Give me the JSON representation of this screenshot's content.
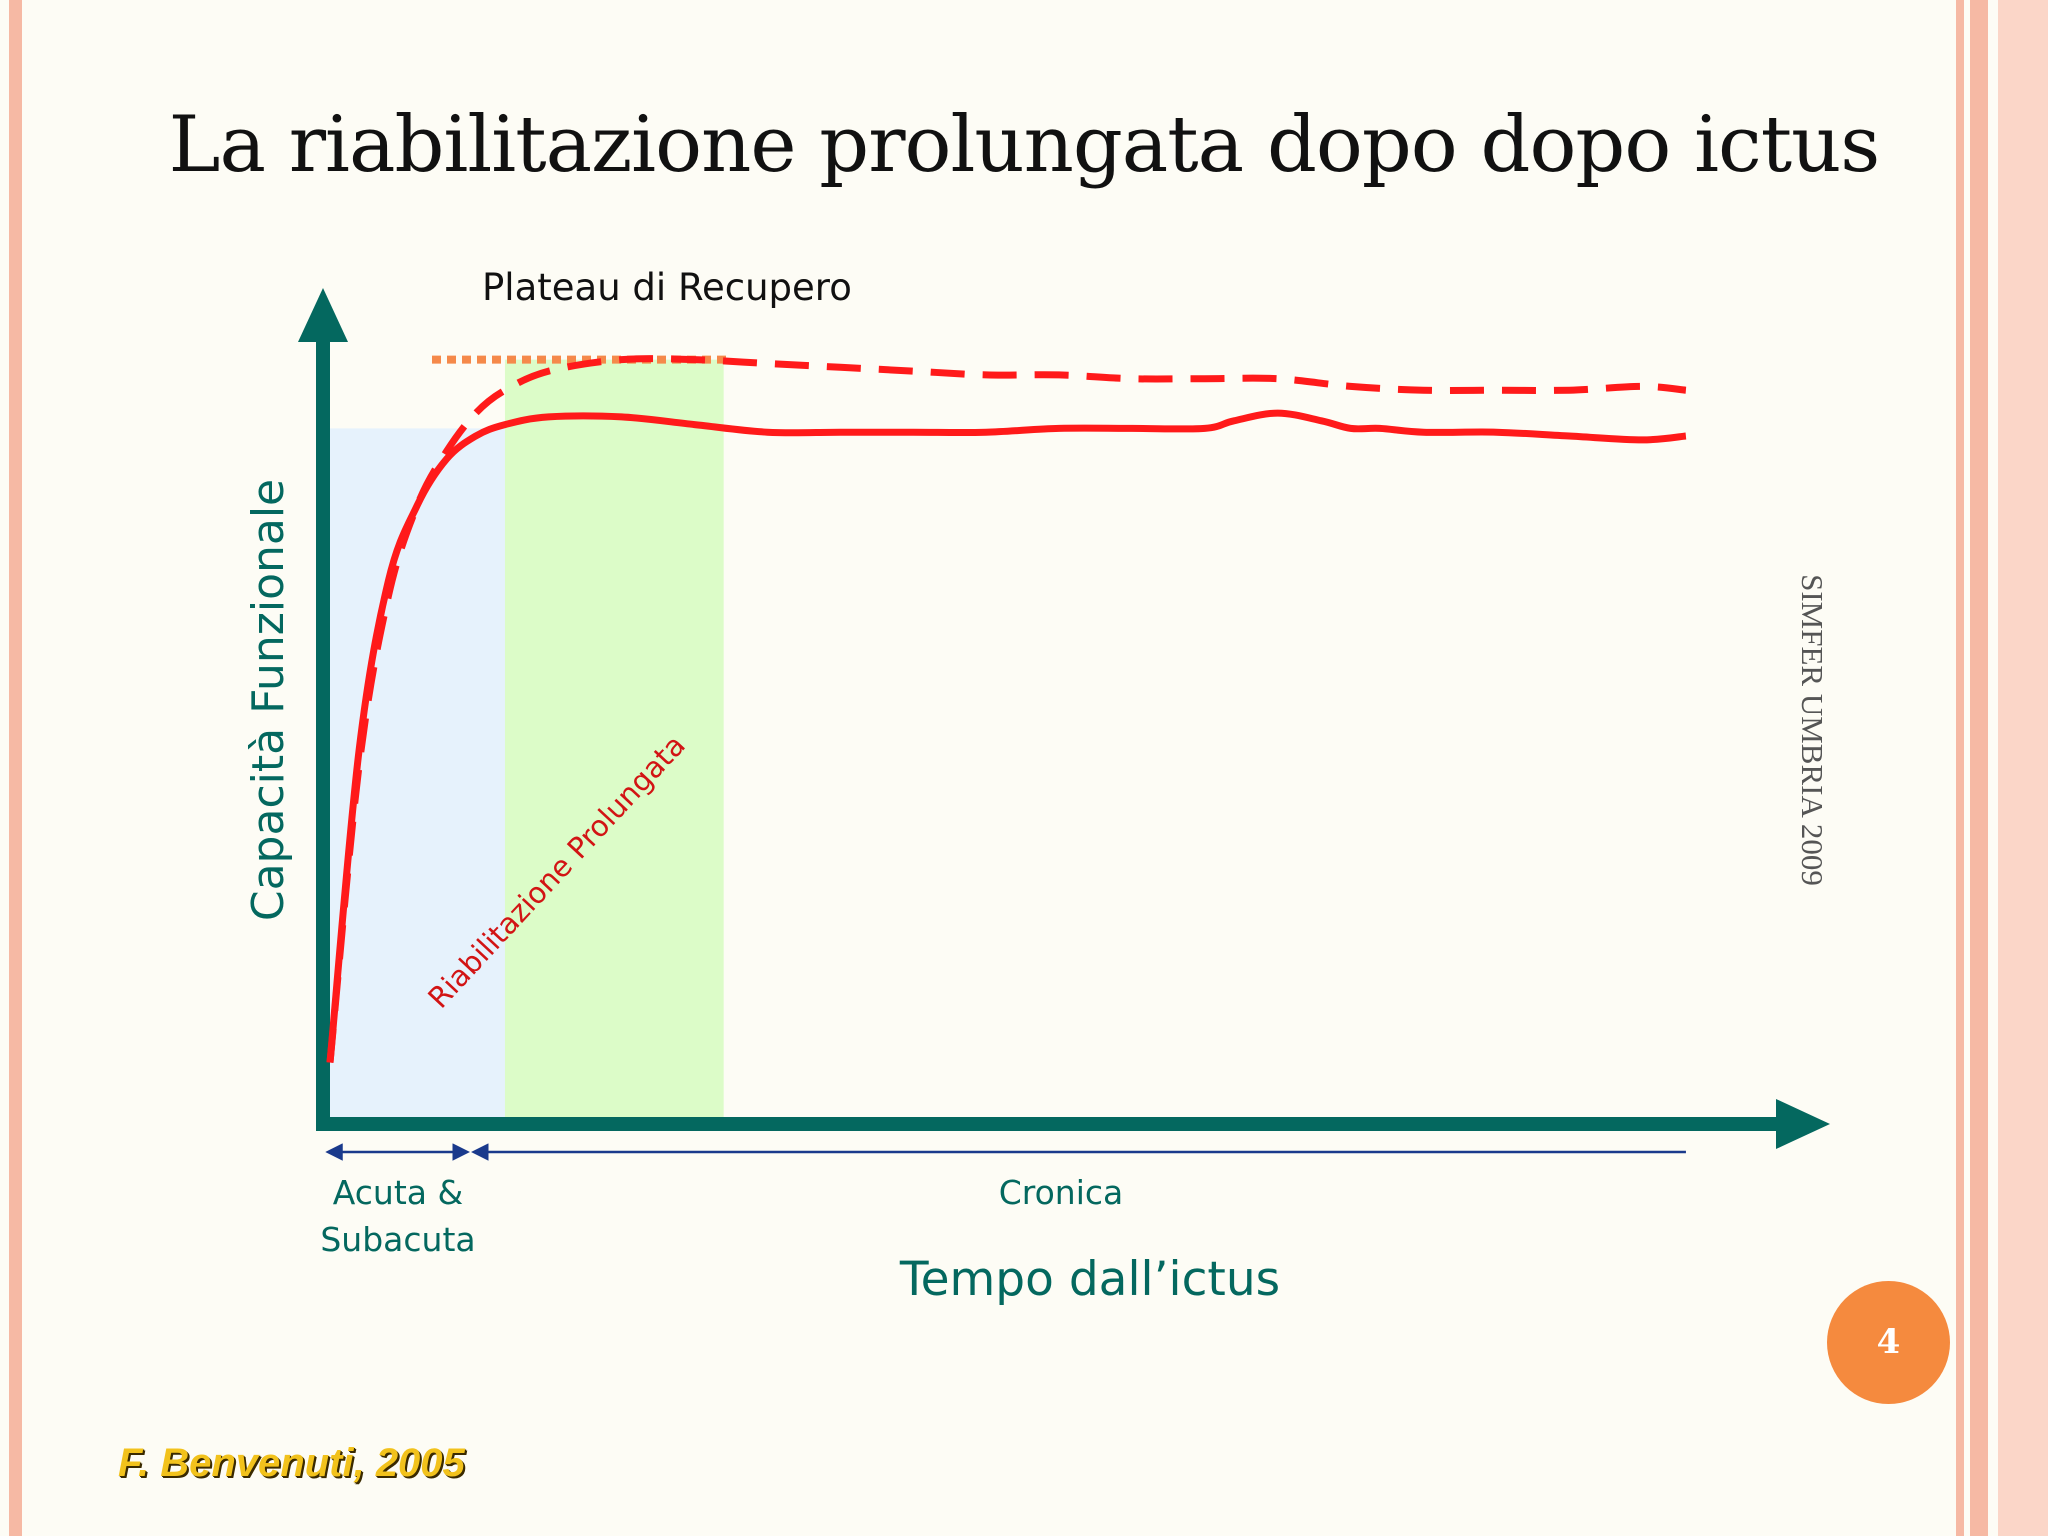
{
  "slide": {
    "title": "La riabilitazione prolungata dopo dopo ictus",
    "side_label": "SIMFER UMBRIA 2009",
    "page_number": "4",
    "credit": "F. Benvenuti, 2005"
  },
  "colors": {
    "background": "#fdfcf5",
    "border_pink": "#f6b9a4",
    "border_light": "#fbd6c8",
    "axis": "#04685f",
    "curve": "#ff1a1a",
    "plateau": "#f5894a",
    "zone_acute": "#e6f2fc",
    "zone_rehab": "#dcfcc8",
    "phase_arrow": "#1a3a8c",
    "badge": "#f58a3e",
    "credit_text": "#f2c21c",
    "rehab_label": "#d21414"
  },
  "chart_data": {
    "type": "line",
    "title": "",
    "xlabel": "Tempo dall’ictus",
    "ylabel": "Capacità Funzionale",
    "xlim": [
      0,
      100
    ],
    "ylim": [
      0,
      100
    ],
    "plateau_label": "Plateau di Recupero",
    "plateau_y": 99,
    "zones": [
      {
        "name": "acute",
        "x_start": 0,
        "x_end": 14,
        "y_top": 90,
        "label": ""
      },
      {
        "name": "rehab",
        "x_start": 12,
        "x_end": 27,
        "y_top": 99,
        "label": "Riabilitazione Prolungata"
      }
    ],
    "phases": [
      {
        "label_lines": [
          "Acuta &",
          "Subacuta"
        ],
        "x_start": 0,
        "x_end": 9
      },
      {
        "label_lines": [
          "Cronica"
        ],
        "x_start": 10,
        "x_end": 93
      }
    ],
    "series": [
      {
        "style": "solid",
        "x": [
          0,
          2,
          4,
          6,
          8,
          10,
          12,
          15,
          20,
          25,
          30,
          35,
          40,
          45,
          50,
          55,
          60,
          62,
          65,
          68,
          70,
          72,
          75,
          80,
          85,
          90,
          93
        ],
        "y": [
          7,
          48,
          70,
          80,
          86,
          89,
          90.5,
          91.5,
          91.5,
          90.5,
          89.5,
          89.5,
          89.5,
          89.5,
          90,
          90,
          90,
          91,
          92,
          91,
          90,
          90,
          89.5,
          89.5,
          89,
          88.5,
          89
        ]
      },
      {
        "style": "dashed",
        "x": [
          0,
          2,
          4,
          6,
          8,
          10,
          12,
          15,
          20,
          25,
          30,
          35,
          40,
          45,
          50,
          55,
          60,
          65,
          70,
          75,
          80,
          85,
          90,
          93
        ],
        "y": [
          7,
          46,
          68,
          80,
          87,
          92,
          95,
          97.5,
          99,
          99,
          98.5,
          98,
          97.5,
          97,
          97,
          96.5,
          96.5,
          96.5,
          95.5,
          95,
          95,
          95,
          95.5,
          95
        ]
      }
    ]
  }
}
